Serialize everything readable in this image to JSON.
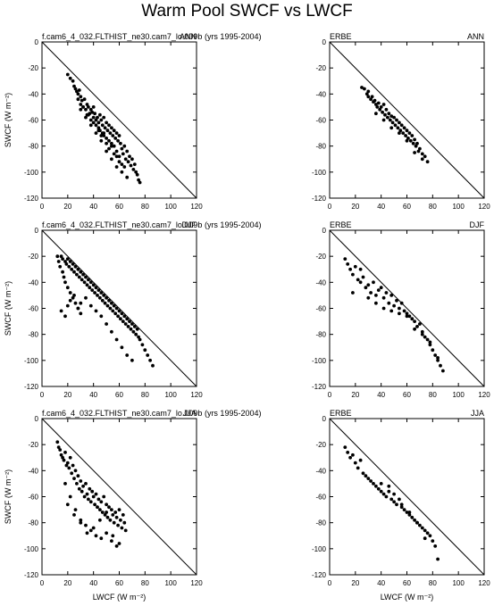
{
  "title": "Warm Pool SWCF vs LWCF",
  "panels": [
    {
      "left_label": "f.cam6_4_032.FLTHIST_ne30.cam7_lo.009b (yrs 1995-2004)",
      "right_label": "ANN",
      "xlabel": "",
      "ylabel": "SWCF (W m⁻²)"
    },
    {
      "left_label": "ERBE",
      "right_label": "ANN",
      "xlabel": "",
      "ylabel": ""
    },
    {
      "left_label": "f.cam6_4_032.FLTHIST_ne30.cam7_lo.009b (yrs 1995-2004)",
      "right_label": "DJF",
      "xlabel": "",
      "ylabel": "SWCF (W m⁻²)"
    },
    {
      "left_label": "ERBE",
      "right_label": "DJF",
      "xlabel": "",
      "ylabel": ""
    },
    {
      "left_label": "f.cam6_4_032.FLTHIST_ne30.cam7_lo.009b (yrs 1995-2004)",
      "right_label": "JJA",
      "xlabel": "LWCF (W m⁻²)",
      "ylabel": "SWCF (W m⁻²)"
    },
    {
      "left_label": "ERBE",
      "right_label": "JJA",
      "xlabel": "LWCF (W m⁻²)",
      "ylabel": ""
    }
  ],
  "chart_data": [
    {
      "type": "scatter",
      "source": "model",
      "season": "ANN",
      "xlim": [
        0,
        120
      ],
      "ylim": [
        -120,
        0
      ],
      "xticks": [
        0,
        20,
        40,
        60,
        80,
        100,
        120
      ],
      "yticks": [
        -120,
        -100,
        -80,
        -60,
        -40,
        -20,
        0
      ],
      "reference_line": "y = -x",
      "x": [
        20,
        22,
        24,
        25,
        26,
        27,
        28,
        29,
        30,
        30,
        31,
        32,
        33,
        34,
        35,
        35,
        36,
        37,
        38,
        38,
        39,
        40,
        40,
        41,
        42,
        42,
        43,
        44,
        44,
        45,
        45,
        46,
        47,
        47,
        48,
        48,
        49,
        50,
        50,
        51,
        52,
        52,
        53,
        54,
        54,
        55,
        56,
        56,
        57,
        58,
        58,
        59,
        60,
        60,
        61,
        62,
        63,
        64,
        65,
        66,
        67,
        68,
        69,
        70,
        71,
        72,
        73,
        74,
        75,
        76,
        28,
        32,
        36,
        40,
        44,
        46,
        48,
        50,
        52,
        54,
        56,
        58,
        60,
        62,
        64,
        30,
        34,
        38,
        42,
        46,
        50,
        54,
        58,
        62,
        66
      ],
      "y": [
        -25,
        -28,
        -30,
        -34,
        -36,
        -38,
        -40,
        -37,
        -42,
        -48,
        -45,
        -50,
        -44,
        -52,
        -48,
        -56,
        -50,
        -55,
        -52,
        -60,
        -54,
        -50,
        -58,
        -55,
        -60,
        -64,
        -58,
        -62,
        -66,
        -56,
        -68,
        -60,
        -64,
        -70,
        -58,
        -72,
        -66,
        -62,
        -74,
        -68,
        -64,
        -76,
        -70,
        -66,
        -78,
        -72,
        -68,
        -80,
        -74,
        -70,
        -84,
        -76,
        -72,
        -88,
        -78,
        -82,
        -86,
        -80,
        -90,
        -84,
        -92,
        -88,
        -95,
        -90,
        -98,
        -94,
        -100,
        -102,
        -106,
        -108,
        -44,
        -50,
        -56,
        -62,
        -68,
        -72,
        -70,
        -78,
        -82,
        -80,
        -86,
        -88,
        -92,
        -94,
        -96,
        -52,
        -58,
        -64,
        -70,
        -76,
        -84,
        -90,
        -96,
        -100,
        -104
      ]
    },
    {
      "type": "scatter",
      "source": "ERBE",
      "season": "ANN",
      "xlim": [
        0,
        120
      ],
      "ylim": [
        -120,
        0
      ],
      "xticks": [
        0,
        20,
        40,
        60,
        80,
        100,
        120
      ],
      "yticks": [
        -120,
        -100,
        -80,
        -60,
        -40,
        -20,
        0
      ],
      "reference_line": "y = -x",
      "x": [
        25,
        27,
        29,
        30,
        32,
        33,
        34,
        35,
        36,
        37,
        38,
        39,
        40,
        41,
        42,
        43,
        44,
        45,
        46,
        47,
        48,
        49,
        50,
        51,
        52,
        53,
        54,
        55,
        56,
        57,
        58,
        59,
        60,
        61,
        62,
        63,
        64,
        65,
        66,
        67,
        68,
        69,
        70,
        72,
        74,
        76,
        30,
        36,
        42,
        48,
        54,
        60,
        66,
        72
      ],
      "y": [
        -35,
        -36,
        -40,
        -38,
        -44,
        -42,
        -46,
        -45,
        -48,
        -50,
        -47,
        -52,
        -50,
        -54,
        -48,
        -56,
        -52,
        -58,
        -55,
        -60,
        -57,
        -62,
        -58,
        -64,
        -60,
        -66,
        -62,
        -68,
        -64,
        -70,
        -66,
        -72,
        -68,
        -74,
        -70,
        -76,
        -72,
        -78,
        -75,
        -80,
        -78,
        -84,
        -82,
        -86,
        -88,
        -92,
        -42,
        -55,
        -60,
        -66,
        -70,
        -76,
        -85,
        -90
      ]
    },
    {
      "type": "scatter",
      "source": "model",
      "season": "DJF",
      "xlim": [
        0,
        120
      ],
      "ylim": [
        -120,
        0
      ],
      "xticks": [
        0,
        20,
        40,
        60,
        80,
        100,
        120
      ],
      "yticks": [
        -120,
        -100,
        -80,
        -60,
        -40,
        -20,
        0
      ],
      "reference_line": "y = -x",
      "x": [
        12,
        13,
        14,
        15,
        16,
        16,
        17,
        18,
        18,
        19,
        20,
        20,
        21,
        22,
        22,
        23,
        24,
        24,
        25,
        26,
        26,
        27,
        28,
        28,
        29,
        30,
        30,
        31,
        32,
        33,
        34,
        35,
        36,
        37,
        38,
        39,
        40,
        41,
        42,
        43,
        44,
        45,
        46,
        47,
        48,
        49,
        50,
        51,
        52,
        53,
        54,
        55,
        56,
        57,
        58,
        59,
        60,
        61,
        62,
        63,
        64,
        65,
        66,
        67,
        68,
        69,
        70,
        71,
        72,
        73,
        74,
        75,
        76,
        78,
        80,
        82,
        84,
        86,
        15,
        18,
        20,
        22,
        25,
        28,
        30,
        34,
        38,
        42,
        46,
        50,
        54,
        58,
        62,
        66,
        70
      ],
      "y": [
        -20,
        -24,
        -28,
        -20,
        -32,
        -22,
        -36,
        -24,
        -40,
        -26,
        -44,
        -22,
        -28,
        -48,
        -24,
        -30,
        -52,
        -26,
        -32,
        -56,
        -28,
        -34,
        -60,
        -30,
        -36,
        -64,
        -32,
        -38,
        -34,
        -40,
        -36,
        -42,
        -38,
        -44,
        -40,
        -46,
        -42,
        -48,
        -44,
        -50,
        -46,
        -52,
        -48,
        -54,
        -50,
        -56,
        -52,
        -58,
        -54,
        -60,
        -56,
        -62,
        -58,
        -64,
        -60,
        -66,
        -62,
        -68,
        -64,
        -70,
        -66,
        -72,
        -68,
        -74,
        -70,
        -76,
        -72,
        -78,
        -74,
        -80,
        -76,
        -82,
        -84,
        -88,
        -92,
        -96,
        -100,
        -104,
        -62,
        -66,
        -58,
        -54,
        -50,
        -60,
        -56,
        -52,
        -58,
        -62,
        -66,
        -72,
        -78,
        -84,
        -90,
        -96,
        -100
      ]
    },
    {
      "type": "scatter",
      "source": "ERBE",
      "season": "DJF",
      "xlim": [
        0,
        120
      ],
      "ylim": [
        -120,
        0
      ],
      "xticks": [
        0,
        20,
        40,
        60,
        80,
        100,
        120
      ],
      "yticks": [
        -120,
        -100,
        -80,
        -60,
        -40,
        -20,
        0
      ],
      "reference_line": "y = -x",
      "x": [
        12,
        14,
        16,
        18,
        20,
        22,
        24,
        26,
        28,
        30,
        32,
        34,
        36,
        38,
        40,
        42,
        44,
        46,
        48,
        50,
        52,
        54,
        56,
        58,
        60,
        62,
        64,
        66,
        68,
        70,
        72,
        74,
        76,
        78,
        80,
        82,
        84,
        86,
        88,
        18,
        24,
        30,
        36,
        42,
        48,
        54,
        60,
        66,
        72,
        78,
        84
      ],
      "y": [
        -22,
        -26,
        -30,
        -34,
        -28,
        -38,
        -40,
        -36,
        -44,
        -42,
        -48,
        -40,
        -50,
        -46,
        -44,
        -52,
        -48,
        -56,
        -50,
        -58,
        -54,
        -60,
        -56,
        -62,
        -64,
        -66,
        -68,
        -70,
        -74,
        -72,
        -78,
        -82,
        -84,
        -88,
        -92,
        -96,
        -100,
        -104,
        -108,
        -48,
        -30,
        -52,
        -56,
        -60,
        -62,
        -64,
        -66,
        -76,
        -80,
        -86,
        -98
      ]
    },
    {
      "type": "scatter",
      "source": "model",
      "season": "JJA",
      "xlim": [
        0,
        120
      ],
      "ylim": [
        -120,
        0
      ],
      "xticks": [
        0,
        20,
        40,
        60,
        80,
        100,
        120
      ],
      "yticks": [
        -120,
        -100,
        -80,
        -60,
        -40,
        -20,
        0
      ],
      "reference_line": "y = -x",
      "x": [
        12,
        13,
        14,
        15,
        16,
        17,
        18,
        19,
        20,
        21,
        22,
        23,
        24,
        25,
        26,
        27,
        28,
        29,
        30,
        31,
        32,
        33,
        34,
        35,
        36,
        37,
        38,
        39,
        40,
        41,
        42,
        43,
        44,
        45,
        46,
        47,
        48,
        49,
        50,
        51,
        52,
        53,
        54,
        55,
        56,
        57,
        58,
        59,
        60,
        61,
        62,
        63,
        64,
        65,
        18,
        22,
        26,
        30,
        34,
        38,
        42,
        46,
        50,
        54,
        58,
        20,
        25,
        30,
        35,
        40,
        45,
        50,
        55,
        60
      ],
      "y": [
        -18,
        -22,
        -24,
        -28,
        -30,
        -32,
        -26,
        -36,
        -34,
        -38,
        -30,
        -42,
        -36,
        -46,
        -40,
        -50,
        -44,
        -54,
        -48,
        -56,
        -52,
        -60,
        -50,
        -58,
        -62,
        -54,
        -64,
        -56,
        -60,
        -66,
        -58,
        -68,
        -62,
        -70,
        -64,
        -72,
        -60,
        -74,
        -66,
        -76,
        -68,
        -78,
        -70,
        -74,
        -80,
        -72,
        -76,
        -82,
        -70,
        -78,
        -84,
        -74,
        -80,
        -86,
        -50,
        -60,
        -70,
        -78,
        -82,
        -86,
        -90,
        -92,
        -88,
        -94,
        -98,
        -66,
        -74,
        -80,
        -88,
        -84,
        -78,
        -72,
        -90,
        -96
      ]
    },
    {
      "type": "scatter",
      "source": "ERBE",
      "season": "JJA",
      "xlim": [
        0,
        120
      ],
      "ylim": [
        -120,
        0
      ],
      "xticks": [
        0,
        20,
        40,
        60,
        80,
        100,
        120
      ],
      "yticks": [
        -120,
        -100,
        -80,
        -60,
        -40,
        -20,
        0
      ],
      "reference_line": "y = -x",
      "x": [
        12,
        14,
        16,
        18,
        20,
        22,
        24,
        26,
        28,
        30,
        32,
        34,
        36,
        38,
        40,
        42,
        44,
        46,
        48,
        50,
        52,
        54,
        56,
        58,
        60,
        62,
        64,
        66,
        68,
        70,
        72,
        74,
        76,
        78,
        80,
        82,
        84,
        40,
        46,
        50,
        56,
        62,
        68,
        74
      ],
      "y": [
        -22,
        -26,
        -30,
        -28,
        -34,
        -38,
        -32,
        -42,
        -44,
        -46,
        -48,
        -50,
        -52,
        -54,
        -56,
        -58,
        -60,
        -56,
        -62,
        -64,
        -66,
        -62,
        -68,
        -70,
        -72,
        -74,
        -76,
        -78,
        -80,
        -82,
        -84,
        -86,
        -88,
        -90,
        -94,
        -98,
        -108,
        -50,
        -52,
        -58,
        -66,
        -72,
        -80,
        -92
      ]
    }
  ]
}
